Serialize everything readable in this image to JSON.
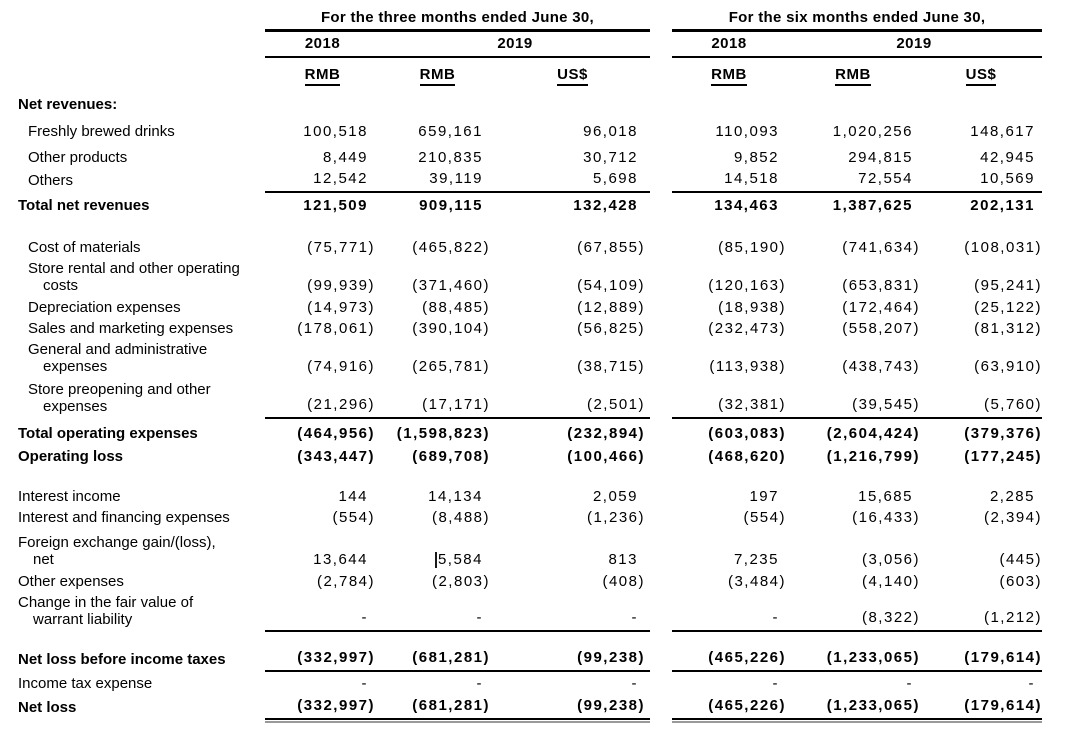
{
  "colors": {
    "background": "#ffffff",
    "text": "#000000",
    "rule": "#000000",
    "double_rule_shadow": "#999999",
    "caret": "#1a1a1a"
  },
  "table": {
    "groups": [
      {
        "title": "For the three months ended June 30,",
        "years": [
          {
            "label": "2018"
          },
          {
            "label": "2019"
          }
        ],
        "currencies": [
          "RMB",
          "RMB",
          "US$"
        ]
      },
      {
        "title": "For the six months ended June 30,",
        "years": [
          {
            "label": "2018"
          },
          {
            "label": "2019"
          }
        ],
        "currencies": [
          "RMB",
          "RMB",
          "US$"
        ]
      }
    ],
    "rows": [
      {
        "label_lines": [
          "Net revenues:"
        ],
        "bold": true,
        "indent": 0,
        "values": [
          "",
          "",
          "",
          "",
          "",
          ""
        ]
      },
      {
        "label_lines": [
          "Freshly brewed drinks"
        ],
        "indent": 1,
        "values": [
          "100,518",
          "659,161",
          "96,018",
          "110,093",
          "1,020,256",
          "148,617"
        ]
      },
      {
        "label_lines": [
          "Other products"
        ],
        "indent": 1,
        "values": [
          "8,449",
          "210,835",
          "30,712",
          "9,852",
          "294,815",
          "42,945"
        ]
      },
      {
        "label_lines": [
          "Others"
        ],
        "indent": 1,
        "rule": "single",
        "values": [
          "12,542",
          "39,119",
          "5,698",
          "14,518",
          "72,554",
          "10,569"
        ]
      },
      {
        "label_lines": [
          "Total net revenues"
        ],
        "bold": true,
        "indent": 0,
        "values": [
          "121,509",
          "909,115",
          "132,428",
          "134,463",
          "1,387,625",
          "202,131"
        ]
      },
      {
        "label_lines": [
          "Cost of materials"
        ],
        "indent": 1,
        "values": [
          "(75,771)",
          "(465,822)",
          "(67,855)",
          "(85,190)",
          "(741,634)",
          "(108,031)"
        ]
      },
      {
        "label_lines": [
          "Store rental and other operating",
          "costs"
        ],
        "indent": 1,
        "values": [
          "(99,939)",
          "(371,460)",
          "(54,109)",
          "(120,163)",
          "(653,831)",
          "(95,241)"
        ]
      },
      {
        "label_lines": [
          "Depreciation expenses"
        ],
        "indent": 1,
        "values": [
          "(14,973)",
          "(88,485)",
          "(12,889)",
          "(18,938)",
          "(172,464)",
          "(25,122)"
        ]
      },
      {
        "label_lines": [
          "Sales and marketing expenses"
        ],
        "indent": 1,
        "values": [
          "(178,061)",
          "(390,104)",
          "(56,825)",
          "(232,473)",
          "(558,207)",
          "(81,312)"
        ]
      },
      {
        "label_lines": [
          "General and administrative",
          "expenses"
        ],
        "indent": 1,
        "values": [
          "(74,916)",
          "(265,781)",
          "(38,715)",
          "(113,938)",
          "(438,743)",
          "(63,910)"
        ]
      },
      {
        "label_lines": [
          "Store preopening and other",
          "expenses"
        ],
        "indent": 1,
        "rule": "single",
        "values": [
          "(21,296)",
          "(17,171)",
          "(2,501)",
          "(32,381)",
          "(39,545)",
          "(5,760)"
        ]
      },
      {
        "label_lines": [
          "Total operating expenses"
        ],
        "bold": true,
        "indent": 0,
        "values": [
          "(464,956)",
          "(1,598,823)",
          "(232,894)",
          "(603,083)",
          "(2,604,424)",
          "(379,376)"
        ]
      },
      {
        "label_lines": [
          "Operating loss"
        ],
        "bold": true,
        "indent": 0,
        "values": [
          "(343,447)",
          "(689,708)",
          "(100,466)",
          "(468,620)",
          "(1,216,799)",
          "(177,245)"
        ]
      },
      {
        "label_lines": [
          "Interest income"
        ],
        "indent": 0,
        "values": [
          "144",
          "14,134",
          "2,059",
          "197",
          "15,685",
          "2,285"
        ]
      },
      {
        "label_lines": [
          "Interest and financing expenses"
        ],
        "indent": 0,
        "values": [
          "(554)",
          "(8,488)",
          "(1,236)",
          "(554)",
          "(16,433)",
          "(2,394)"
        ]
      },
      {
        "label_lines": [
          "Foreign exchange gain/(loss),",
          "net"
        ],
        "indent": 0,
        "caret_col": 1,
        "values": [
          "13,644",
          "5,584",
          "813",
          "7,235",
          "(3,056)",
          "(445)"
        ]
      },
      {
        "label_lines": [
          "Other expenses"
        ],
        "indent": 0,
        "values": [
          "(2,784)",
          "(2,803)",
          "(408)",
          "(3,484)",
          "(4,140)",
          "(603)"
        ]
      },
      {
        "label_lines": [
          "Change in the fair value of",
          "warrant liability"
        ],
        "indent": 0,
        "rule": "single",
        "values": [
          "-",
          "-",
          "-",
          "-",
          "(8,322)",
          "(1,212)"
        ]
      },
      {
        "label_lines": [
          "Net loss before income taxes"
        ],
        "bold": true,
        "indent": 0,
        "rule": "single",
        "values": [
          "(332,997)",
          "(681,281)",
          "(99,238)",
          "(465,226)",
          "(1,233,065)",
          "(179,614)"
        ]
      },
      {
        "label_lines": [
          "Income tax expense"
        ],
        "indent": 0,
        "values": [
          "-",
          "-",
          "-",
          "-",
          "-",
          "-"
        ]
      },
      {
        "label_lines": [
          "Net loss"
        ],
        "bold": true,
        "indent": 0,
        "rule": "double",
        "values": [
          "(332,997)",
          "(681,281)",
          "(99,238)",
          "(465,226)",
          "(1,233,065)",
          "(179,614)"
        ]
      }
    ]
  }
}
